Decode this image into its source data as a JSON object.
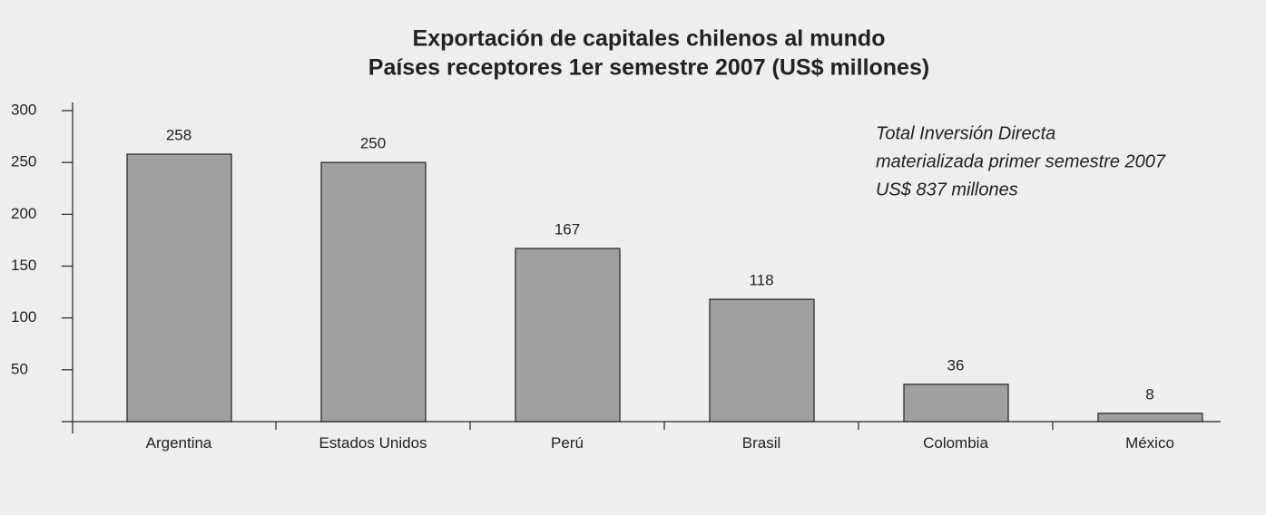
{
  "chart_data": {
    "type": "bar",
    "title": "Exportación de capitales chilenos al mundo",
    "subtitle": "Países receptores 1er semestre 2007 (US$ millones)",
    "categories": [
      "Argentina",
      "Estados Unidos",
      "Perú",
      "Brasil",
      "Colombia",
      "México"
    ],
    "values": [
      258,
      250,
      167,
      118,
      36,
      8
    ],
    "color": "#a0a0a2",
    "ylim": [
      0,
      300
    ],
    "yticks": [
      50,
      100,
      150,
      200,
      250,
      300
    ],
    "grid": false,
    "annotation": [
      "Total Inversión Directa",
      "materializada primer semestre 2007",
      "US$ 837 millones"
    ]
  }
}
